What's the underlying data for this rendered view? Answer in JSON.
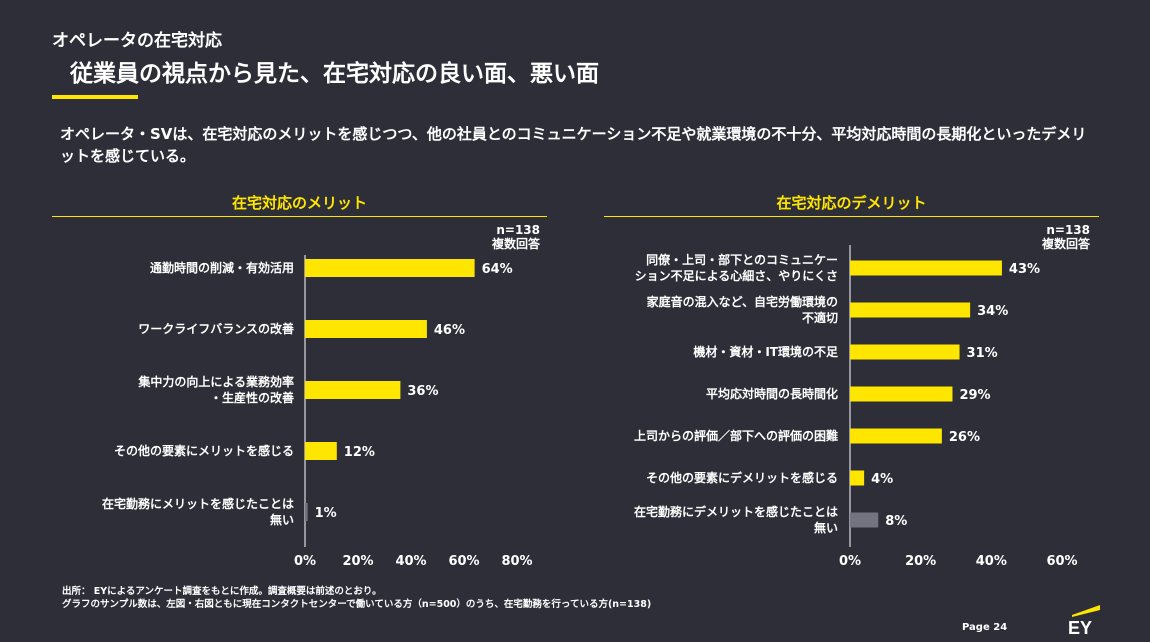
{
  "header": {
    "section_title": "オペレータの在宅対応",
    "main_title": "従業員の視点から見た、在宅対応の良い面、悪い面"
  },
  "summary": "オペレータ・SVは、在宅対応のメリットを感じつつ、他の社員とのコミュニケーション不足や就業環境の不十分、平均対応時間の長期化といったデメリットを感じている。",
  "colors": {
    "accent": "#ffe600",
    "bar_highlight": "#ffe600",
    "bar_muted": "#747480",
    "background": "#2e2e38"
  },
  "chart_data": [
    {
      "type": "bar",
      "orientation": "horizontal",
      "title": "在宅対応のメリット",
      "note_n": "n=138",
      "note_multi": "複数回答",
      "categories": [
        [
          "通勤時間の削減・有効活用"
        ],
        [
          "ワークライフバランスの改善"
        ],
        [
          "集中力の向上による業務効率",
          "・生産性の改善"
        ],
        [
          "その他の要素にメリットを感じる"
        ],
        [
          "在宅勤務にメリットを感じたことは",
          "無い"
        ]
      ],
      "values": [
        64,
        46,
        36,
        12,
        1
      ],
      "value_labels": [
        "64%",
        "46%",
        "36%",
        "12%",
        "1%"
      ],
      "muted": [
        false,
        false,
        false,
        false,
        true
      ],
      "xlim": [
        0,
        80
      ],
      "ticks": [
        "0%",
        "20%",
        "40%",
        "60%",
        "80%"
      ]
    },
    {
      "type": "bar",
      "orientation": "horizontal",
      "title": "在宅対応のデメリット",
      "note_n": "n=138",
      "note_multi": "複数回答",
      "categories": [
        [
          "同僚・上司・部下とのコミュニケー",
          "ション不足による心細さ、やりにくさ"
        ],
        [
          "家庭音の混入など、自宅労働環境の",
          "不適切"
        ],
        [
          "機材・資材・IT環境の不足"
        ],
        [
          "平均応対時間の長時間化"
        ],
        [
          "上司からの評価／部下への評価の困難"
        ],
        [
          "その他の要素にデメリットを感じる"
        ],
        [
          "在宅勤務にデメリットを感じたことは",
          "無い"
        ]
      ],
      "values": [
        43,
        34,
        31,
        29,
        26,
        4,
        8
      ],
      "value_labels": [
        "43%",
        "34%",
        "31%",
        "29%",
        "26%",
        "4%",
        "8%"
      ],
      "muted": [
        false,
        false,
        false,
        false,
        false,
        false,
        true
      ],
      "xlim": [
        0,
        60
      ],
      "ticks": [
        "0%",
        "20%",
        "40%",
        "60%"
      ]
    }
  ],
  "footer": {
    "source_line1": "出所： EYによるアンケート調査をもとに作成。調査概要は前述のとおり。",
    "source_line2": "グラフのサンプル数は、左図・右図ともに現在コンタクトセンターで働いている方（n=500）のうち、在宅勤務を行っている方(n=138)",
    "page": "Page 24",
    "logo_text": "EY"
  }
}
